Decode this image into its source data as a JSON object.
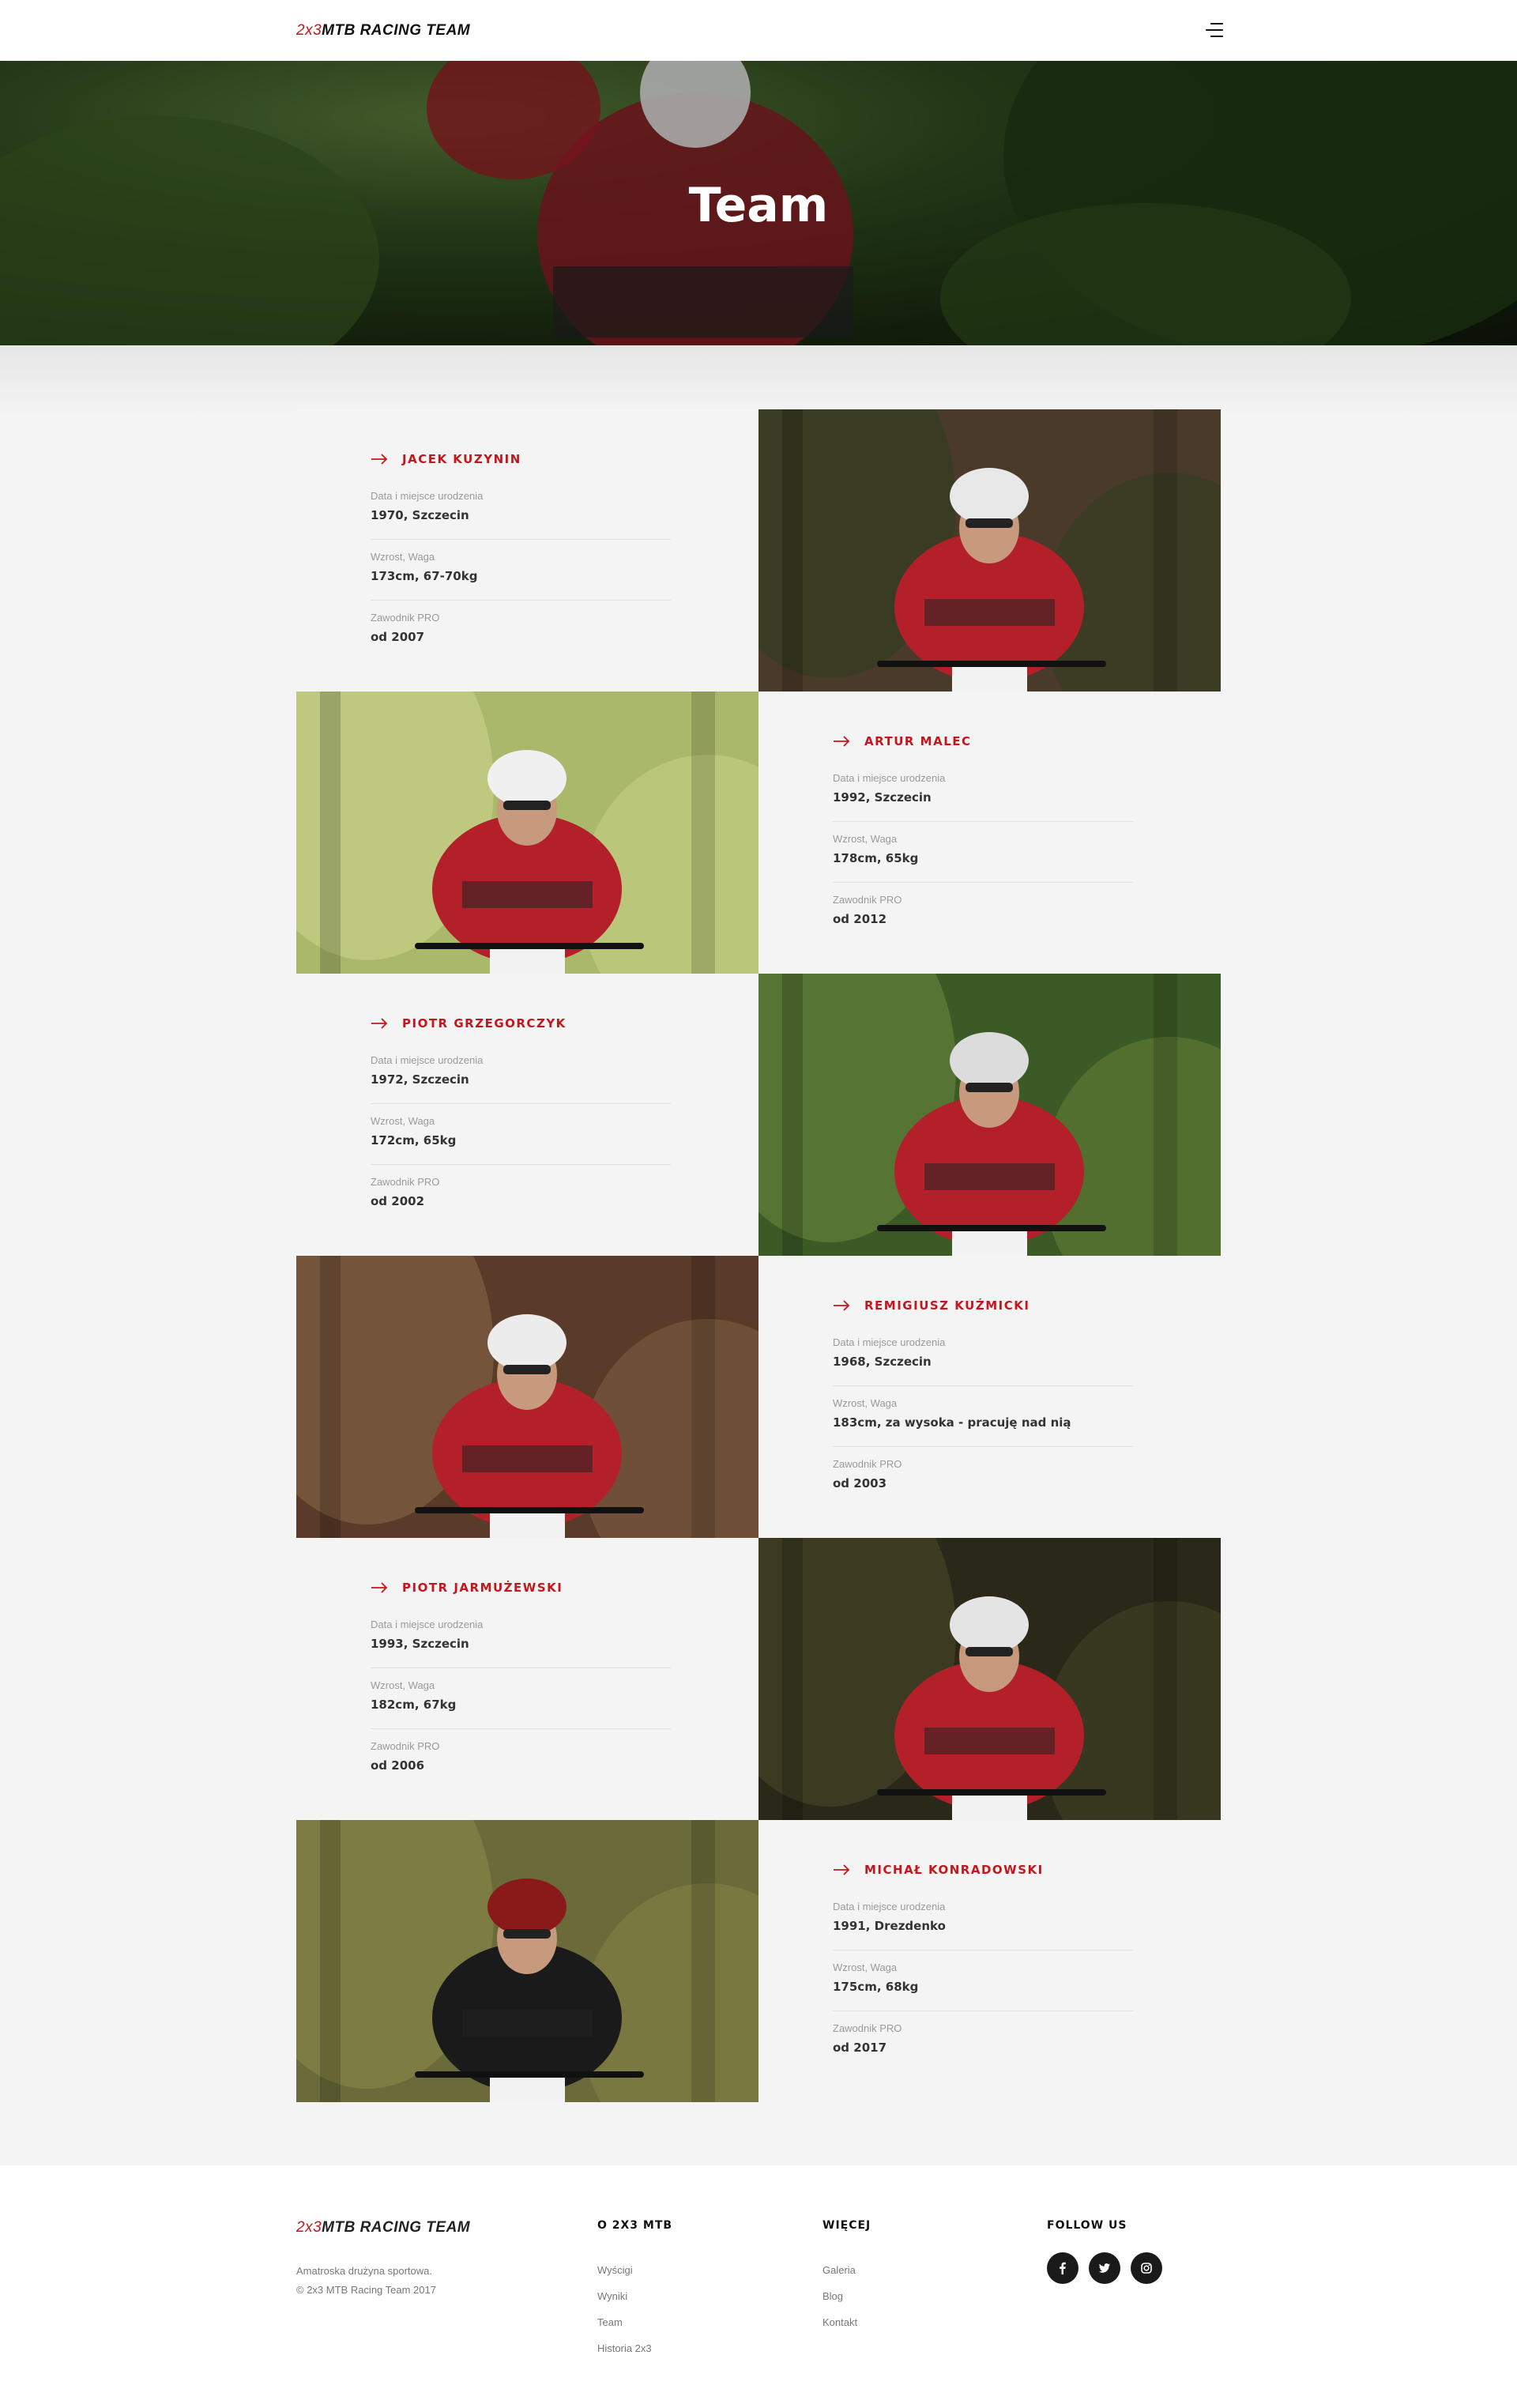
{
  "header": {
    "logo_accent": "2x3",
    "logo_rest": "MTB RACING TEAM",
    "menu_icon": "hamburger-icon"
  },
  "hero": {
    "title": "Team"
  },
  "members": [
    {
      "name": "JACEK KUZYNIN",
      "birth_label": "Data i miejsce urodzenia",
      "birth": "1970, Szczecin",
      "size_label": "Wzrost, Waga",
      "size": "173cm, 67-70kg",
      "pro_label": "Zawodnik PRO",
      "pro": "od 2007"
    },
    {
      "name": "ARTUR MALEC",
      "birth_label": "Data i miejsce urodzenia",
      "birth": "1992, Szczecin",
      "size_label": "Wzrost, Waga",
      "size": "178cm, 65kg",
      "pro_label": "Zawodnik PRO",
      "pro": "od 2012"
    },
    {
      "name": "PIOTR GRZEGORCZYK",
      "birth_label": "Data i miejsce urodzenia",
      "birth": "1972, Szczecin",
      "size_label": "Wzrost, Waga",
      "size": "172cm, 65kg",
      "pro_label": "Zawodnik PRO",
      "pro": "od 2002"
    },
    {
      "name": "REMIGIUSZ KUŹMICKI",
      "birth_label": "Data i miejsce urodzenia",
      "birth": "1968, Szczecin",
      "size_label": "Wzrost, Waga",
      "size": "183cm, za wysoka - pracuję nad nią",
      "pro_label": "Zawodnik PRO",
      "pro": "od 2003"
    },
    {
      "name": "PIOTR JARMUŻEWSKI",
      "birth_label": "Data i miejsce urodzenia",
      "birth": "1993, Szczecin",
      "size_label": "Wzrost, Waga",
      "size": "182cm, 67kg",
      "pro_label": "Zawodnik PRO",
      "pro": "od 2006"
    },
    {
      "name": "MICHAŁ KONRADOWSKI",
      "birth_label": "Data i miejsce urodzenia",
      "birth": "1991, Drezdenko",
      "size_label": "Wzrost, Waga",
      "size": "175cm, 68kg",
      "pro_label": "Zawodnik PRO",
      "pro": "od 2017"
    }
  ],
  "photos": [
    {
      "bg": "#4a3a2a",
      "fg": "#2d3d1d",
      "jersey": "#b3202a",
      "helmet": "#e8e8e8"
    },
    {
      "bg": "#a9b86a",
      "fg": "#cfd68e",
      "jersey": "#b3202a",
      "helmet": "#f0f0f0"
    },
    {
      "bg": "#3c5a26",
      "fg": "#6c8a3e",
      "jersey": "#b3202a",
      "helmet": "#dcdcdc"
    },
    {
      "bg": "#5a3a28",
      "fg": "#8a6a4a",
      "jersey": "#b3202a",
      "helmet": "#ececec"
    },
    {
      "bg": "#2a2818",
      "fg": "#4a4a2a",
      "jersey": "#b3202a",
      "helmet": "#e4e4e4"
    },
    {
      "bg": "#6a6a3a",
      "fg": "#8a8a4a",
      "jersey": "#1a1a1a",
      "helmet": "#8a1a1a"
    }
  ],
  "footer": {
    "logo_accent": "2x3",
    "logo_rest": "MTB RACING TEAM",
    "about_line1": "Amatroska drużyna sportowa.",
    "about_line2": "© 2x3 MTB Racing Team 2017",
    "col1_title": "O 2X3 MTB",
    "col1_links": [
      "Wyścigi",
      "Wyniki",
      "Team",
      "Historia 2x3"
    ],
    "col2_title": "WIĘCEJ",
    "col2_links": [
      "Galeria",
      "Blog",
      "Kontakt"
    ],
    "col3_title": "FOLLOW US",
    "social": [
      "facebook-icon",
      "twitter-icon",
      "instagram-icon"
    ]
  },
  "colors": {
    "accent": "#c4161c",
    "page_bg": "#f4f4f4",
    "footer_bg": "#ffffff"
  }
}
